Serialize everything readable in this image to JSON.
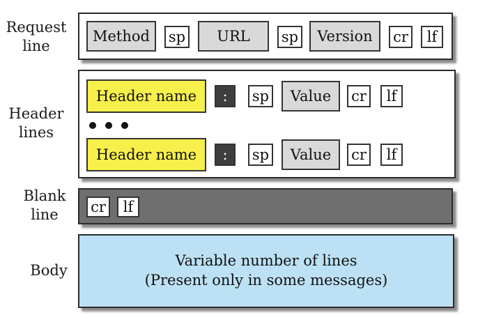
{
  "labels": {
    "request": [
      "Request",
      "line"
    ],
    "header": [
      "Header",
      "lines"
    ],
    "blank": [
      "Blank",
      "line"
    ],
    "body": "Body"
  },
  "request_line": {
    "fields": [
      "Method",
      "sp",
      "URL",
      "sp",
      "Version",
      "cr",
      "lf"
    ]
  },
  "header_lines": {
    "rows": [
      [
        "Header name",
        ":",
        "sp",
        "Value",
        "cr",
        "lf"
      ],
      [
        "Header name",
        ":",
        "sp",
        "Value",
        "cr",
        "lf"
      ]
    ]
  },
  "blank_line": {
    "fields": [
      "cr",
      "lf"
    ]
  },
  "body": {
    "line1": "Variable number of lines",
    "line2": "(Present only in some messages)"
  },
  "colors": {
    "gray_field": "#d9d9d9",
    "header_name": "#f7f04a",
    "colon": "#3e3e3e",
    "blank_line_bg": "#6f6f6f",
    "body_bg": "#bde1f4"
  }
}
